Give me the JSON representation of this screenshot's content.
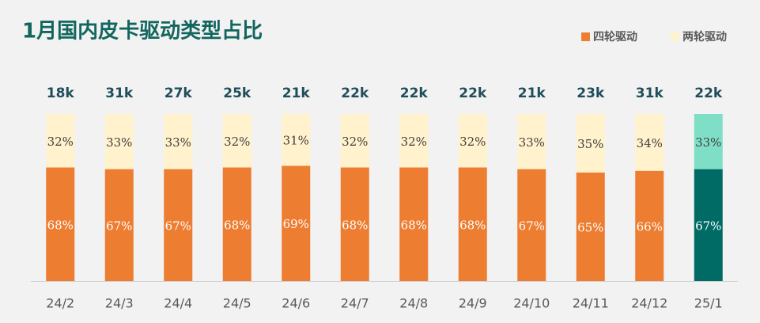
{
  "chart_data": {
    "type": "stacked-bar-100",
    "title": "1月国内皮卡驱动类型占比",
    "categories": [
      "24/2",
      "24/3",
      "24/4",
      "24/5",
      "24/6",
      "24/7",
      "24/8",
      "24/9",
      "24/10",
      "24/11",
      "24/12",
      "25/1"
    ],
    "series": [
      {
        "name": "四轮驱动",
        "color": "#ed7d31",
        "highlight_color": "#006b65",
        "values": [
          68,
          67,
          67,
          68,
          69,
          68,
          68,
          68,
          67,
          65,
          66,
          67
        ],
        "value_labels": [
          "68%",
          "67%",
          "67%",
          "68%",
          "69%",
          "68%",
          "68%",
          "68%",
          "67%",
          "65%",
          "66%",
          "67%"
        ]
      },
      {
        "name": "两轮驱动",
        "color": "#fff2cc",
        "highlight_color": "#7fdfc6",
        "values": [
          32,
          33,
          33,
          32,
          31,
          32,
          32,
          32,
          33,
          35,
          34,
          33
        ],
        "value_labels": [
          "32%",
          "33%",
          "33%",
          "32%",
          "31%",
          "32%",
          "32%",
          "32%",
          "33%",
          "35%",
          "34%",
          "33%"
        ]
      }
    ],
    "highlight_index": 11,
    "totals": {
      "values": [
        18000,
        31000,
        27000,
        25000,
        21000,
        22000,
        22000,
        22000,
        21000,
        23000,
        31000,
        22000
      ],
      "value_labels": [
        "18k",
        "31k",
        "27k",
        "25k",
        "21k",
        "22k",
        "22k",
        "22k",
        "21k",
        "23k",
        "31k",
        "22k"
      ]
    },
    "ylim": [
      0,
      100
    ]
  }
}
